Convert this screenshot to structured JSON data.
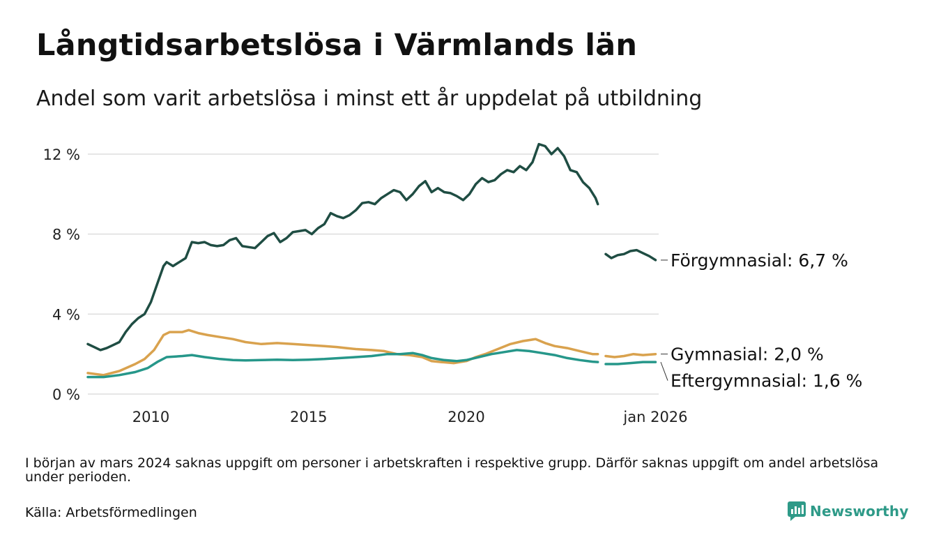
{
  "chart_data": {
    "type": "line",
    "title": "Långtidsarbetslösa i Värmlands län",
    "subtitle": "Andel som varit arbetslösa i minst ett år uppdelat på utbildning",
    "xlabel": "",
    "ylabel": "",
    "xlim": [
      2008.0,
      2026.1
    ],
    "ylim": [
      0,
      12
    ],
    "y_ticks": [
      {
        "value": 0,
        "label": "0 %"
      },
      {
        "value": 4,
        "label": "4 %"
      },
      {
        "value": 8,
        "label": "8 %"
      },
      {
        "value": 12,
        "label": "12 %"
      }
    ],
    "x_ticks": [
      {
        "value": 2010,
        "label": "2010"
      },
      {
        "value": 2015,
        "label": "2015"
      },
      {
        "value": 2020,
        "label": "2020"
      },
      {
        "value": 2026.0,
        "label": "jan 2026"
      }
    ],
    "gap": [
      2024.17,
      2024.42
    ],
    "series": [
      {
        "name": "Förgymnasial",
        "color": "#1f4d43",
        "end_label": "Förgymnasial: 6,7 %",
        "points": [
          [
            2008.0,
            2.5
          ],
          [
            2008.2,
            2.35
          ],
          [
            2008.4,
            2.2
          ],
          [
            2008.6,
            2.3
          ],
          [
            2008.8,
            2.45
          ],
          [
            2009.0,
            2.6
          ],
          [
            2009.2,
            3.1
          ],
          [
            2009.4,
            3.5
          ],
          [
            2009.6,
            3.8
          ],
          [
            2009.8,
            4.0
          ],
          [
            2010.0,
            4.6
          ],
          [
            2010.2,
            5.5
          ],
          [
            2010.4,
            6.4
          ],
          [
            2010.5,
            6.6
          ],
          [
            2010.7,
            6.4
          ],
          [
            2010.9,
            6.6
          ],
          [
            2011.1,
            6.8
          ],
          [
            2011.3,
            7.6
          ],
          [
            2011.5,
            7.55
          ],
          [
            2011.7,
            7.6
          ],
          [
            2011.9,
            7.45
          ],
          [
            2012.1,
            7.4
          ],
          [
            2012.3,
            7.45
          ],
          [
            2012.5,
            7.7
          ],
          [
            2012.7,
            7.8
          ],
          [
            2012.9,
            7.4
          ],
          [
            2013.1,
            7.35
          ],
          [
            2013.3,
            7.3
          ],
          [
            2013.5,
            7.6
          ],
          [
            2013.7,
            7.9
          ],
          [
            2013.9,
            8.05
          ],
          [
            2014.1,
            7.6
          ],
          [
            2014.3,
            7.8
          ],
          [
            2014.5,
            8.1
          ],
          [
            2014.7,
            8.15
          ],
          [
            2014.9,
            8.2
          ],
          [
            2015.1,
            8.0
          ],
          [
            2015.3,
            8.3
          ],
          [
            2015.5,
            8.5
          ],
          [
            2015.7,
            9.05
          ],
          [
            2015.9,
            8.9
          ],
          [
            2016.1,
            8.8
          ],
          [
            2016.3,
            8.95
          ],
          [
            2016.5,
            9.2
          ],
          [
            2016.7,
            9.55
          ],
          [
            2016.9,
            9.6
          ],
          [
            2017.1,
            9.5
          ],
          [
            2017.3,
            9.8
          ],
          [
            2017.5,
            10.0
          ],
          [
            2017.7,
            10.2
          ],
          [
            2017.9,
            10.1
          ],
          [
            2018.1,
            9.7
          ],
          [
            2018.3,
            10.0
          ],
          [
            2018.5,
            10.4
          ],
          [
            2018.7,
            10.65
          ],
          [
            2018.9,
            10.1
          ],
          [
            2019.1,
            10.3
          ],
          [
            2019.3,
            10.1
          ],
          [
            2019.5,
            10.05
          ],
          [
            2019.7,
            9.9
          ],
          [
            2019.9,
            9.7
          ],
          [
            2020.1,
            10.0
          ],
          [
            2020.3,
            10.5
          ],
          [
            2020.5,
            10.8
          ],
          [
            2020.7,
            10.6
          ],
          [
            2020.9,
            10.7
          ],
          [
            2021.1,
            11.0
          ],
          [
            2021.3,
            11.2
          ],
          [
            2021.5,
            11.1
          ],
          [
            2021.7,
            11.4
          ],
          [
            2021.9,
            11.2
          ],
          [
            2022.1,
            11.6
          ],
          [
            2022.3,
            12.5
          ],
          [
            2022.5,
            12.4
          ],
          [
            2022.7,
            12.0
          ],
          [
            2022.9,
            12.3
          ],
          [
            2023.1,
            11.9
          ],
          [
            2023.3,
            11.2
          ],
          [
            2023.5,
            11.1
          ],
          [
            2023.7,
            10.6
          ],
          [
            2023.9,
            10.3
          ],
          [
            2024.1,
            9.8
          ],
          [
            2024.17,
            9.5
          ],
          [
            2024.42,
            7.0
          ],
          [
            2024.6,
            6.8
          ],
          [
            2024.8,
            6.95
          ],
          [
            2025.0,
            7.0
          ],
          [
            2025.2,
            7.15
          ],
          [
            2025.4,
            7.2
          ],
          [
            2025.6,
            7.05
          ],
          [
            2025.8,
            6.9
          ],
          [
            2026.0,
            6.7
          ]
        ]
      },
      {
        "name": "Gymnasial",
        "color": "#d9a24e",
        "end_label": "Gymnasial: 2,0 %",
        "points": [
          [
            2008.0,
            1.05
          ],
          [
            2008.5,
            0.95
          ],
          [
            2009.0,
            1.15
          ],
          [
            2009.5,
            1.5
          ],
          [
            2009.8,
            1.75
          ],
          [
            2010.1,
            2.2
          ],
          [
            2010.4,
            2.95
          ],
          [
            2010.6,
            3.1
          ],
          [
            2010.8,
            3.1
          ],
          [
            2011.0,
            3.1
          ],
          [
            2011.2,
            3.2
          ],
          [
            2011.5,
            3.05
          ],
          [
            2011.8,
            2.95
          ],
          [
            2012.2,
            2.85
          ],
          [
            2012.6,
            2.75
          ],
          [
            2013.0,
            2.6
          ],
          [
            2013.5,
            2.5
          ],
          [
            2014.0,
            2.55
          ],
          [
            2014.5,
            2.5
          ],
          [
            2015.0,
            2.45
          ],
          [
            2015.5,
            2.4
          ],
          [
            2015.9,
            2.35
          ],
          [
            2016.2,
            2.3
          ],
          [
            2016.5,
            2.25
          ],
          [
            2017.0,
            2.2
          ],
          [
            2017.4,
            2.15
          ],
          [
            2017.8,
            2.0
          ],
          [
            2018.2,
            1.95
          ],
          [
            2018.6,
            1.85
          ],
          [
            2018.9,
            1.65
          ],
          [
            2019.2,
            1.6
          ],
          [
            2019.6,
            1.55
          ],
          [
            2020.0,
            1.65
          ],
          [
            2020.3,
            1.85
          ],
          [
            2020.6,
            2.0
          ],
          [
            2021.0,
            2.25
          ],
          [
            2021.4,
            2.5
          ],
          [
            2021.8,
            2.65
          ],
          [
            2022.2,
            2.75
          ],
          [
            2022.5,
            2.55
          ],
          [
            2022.8,
            2.4
          ],
          [
            2023.2,
            2.3
          ],
          [
            2023.6,
            2.15
          ],
          [
            2024.0,
            2.0
          ],
          [
            2024.17,
            2.0
          ],
          [
            2024.42,
            1.9
          ],
          [
            2024.7,
            1.85
          ],
          [
            2025.0,
            1.9
          ],
          [
            2025.3,
            2.0
          ],
          [
            2025.6,
            1.95
          ],
          [
            2026.0,
            2.0
          ]
        ]
      },
      {
        "name": "Eftergymnasial",
        "color": "#26978a",
        "end_label": "Eftergymnasial: 1,6 %",
        "points": [
          [
            2008.0,
            0.85
          ],
          [
            2008.5,
            0.85
          ],
          [
            2009.0,
            0.95
          ],
          [
            2009.5,
            1.1
          ],
          [
            2009.9,
            1.3
          ],
          [
            2010.2,
            1.6
          ],
          [
            2010.5,
            1.85
          ],
          [
            2011.0,
            1.9
          ],
          [
            2011.3,
            1.95
          ],
          [
            2011.7,
            1.85
          ],
          [
            2012.2,
            1.75
          ],
          [
            2012.6,
            1.7
          ],
          [
            2013.0,
            1.68
          ],
          [
            2013.5,
            1.7
          ],
          [
            2014.0,
            1.72
          ],
          [
            2014.5,
            1.7
          ],
          [
            2015.0,
            1.72
          ],
          [
            2015.5,
            1.75
          ],
          [
            2016.0,
            1.8
          ],
          [
            2016.5,
            1.85
          ],
          [
            2017.0,
            1.9
          ],
          [
            2017.5,
            2.0
          ],
          [
            2017.9,
            2.0
          ],
          [
            2018.3,
            2.05
          ],
          [
            2018.6,
            1.95
          ],
          [
            2018.9,
            1.8
          ],
          [
            2019.3,
            1.7
          ],
          [
            2019.7,
            1.65
          ],
          [
            2020.0,
            1.7
          ],
          [
            2020.4,
            1.85
          ],
          [
            2020.8,
            2.0
          ],
          [
            2021.2,
            2.1
          ],
          [
            2021.6,
            2.2
          ],
          [
            2022.0,
            2.15
          ],
          [
            2022.4,
            2.05
          ],
          [
            2022.8,
            1.95
          ],
          [
            2023.2,
            1.8
          ],
          [
            2023.6,
            1.7
          ],
          [
            2024.0,
            1.62
          ],
          [
            2024.17,
            1.6
          ],
          [
            2024.42,
            1.5
          ],
          [
            2024.8,
            1.5
          ],
          [
            2025.2,
            1.55
          ],
          [
            2025.6,
            1.6
          ],
          [
            2026.0,
            1.6
          ]
        ]
      }
    ]
  },
  "footer": {
    "note": "I början av mars 2024 saknas uppgift om personer i arbetskraften i respektive grupp. Därför saknas uppgift om andel arbetslösa under perioden.",
    "source": "Källa: Arbetsförmedlingen",
    "brand": "Newsworthy",
    "brand_color": "#2e9a88"
  }
}
